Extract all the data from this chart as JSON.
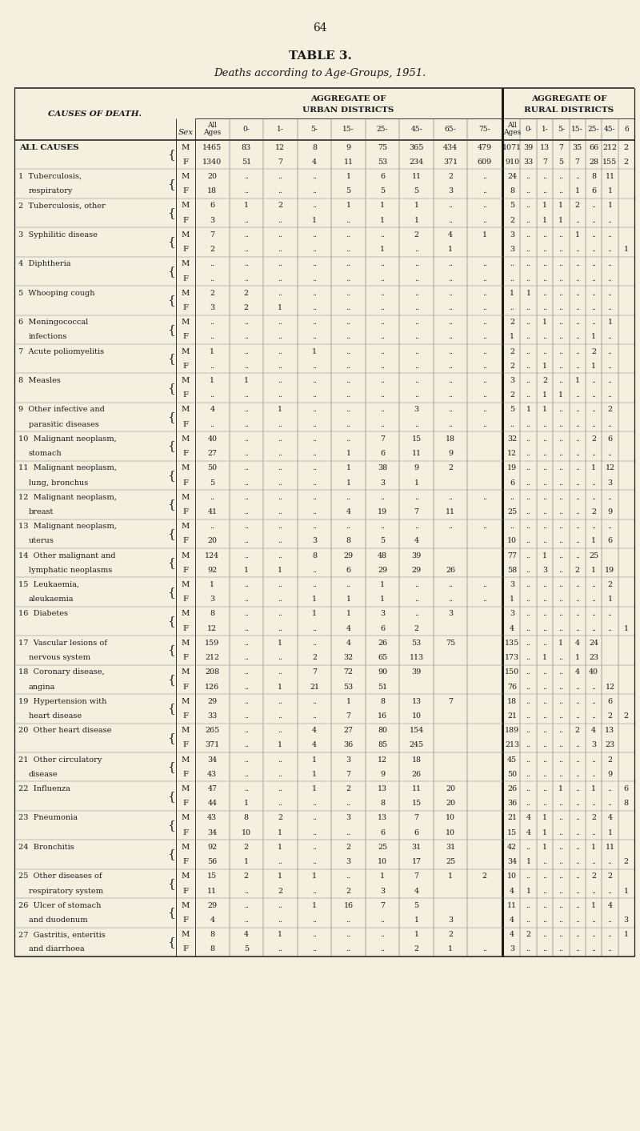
{
  "page_number": "64",
  "title": "TABLE 3.",
  "subtitle": "Deaths according to Age-Groups, 1951.",
  "bg_color": "#f5efe0",
  "rows": [
    {
      "cause": "ALL CAUSES",
      "num": "",
      "sex": "M",
      "u": [
        "1465",
        "83",
        "12",
        "8",
        "9",
        "75",
        "365",
        "434",
        "479"
      ],
      "r": [
        "1071",
        "39",
        "13",
        "7",
        "35",
        "66",
        "212",
        "2"
      ]
    },
    {
      "cause": "",
      "num": "",
      "sex": "F",
      "u": [
        "1340",
        "51",
        "7",
        "4",
        "11",
        "53",
        "234",
        "371",
        "609"
      ],
      "r": [
        "910",
        "33",
        "7",
        "5",
        "7",
        "28",
        "155",
        "2"
      ]
    },
    {
      "cause": "Tuberculosis,",
      "num": "1",
      "sex": "M",
      "u": [
        "20",
        "..",
        "..",
        "..",
        "1",
        "6",
        "11",
        "2",
        ".."
      ],
      "r": [
        "24",
        "..",
        "..",
        "..",
        "..",
        "8",
        "11",
        ""
      ]
    },
    {
      "cause": "respiratory",
      "num": "",
      "sex": "F",
      "u": [
        "18",
        "..",
        "..",
        "..",
        "5",
        "5",
        "5",
        "3",
        ".."
      ],
      "r": [
        "8",
        "..",
        "..",
        "..",
        "1",
        "6",
        "1",
        ""
      ]
    },
    {
      "cause": "Tuberculosis, other",
      "num": "2",
      "sex": "M",
      "u": [
        "6",
        "1",
        "2",
        "..",
        "1",
        "1",
        "1",
        "..",
        ".."
      ],
      "r": [
        "5",
        "..",
        "1",
        "1",
        "2",
        "..",
        "1",
        ""
      ]
    },
    {
      "cause": "",
      "num": "",
      "sex": "F",
      "u": [
        "3",
        "..",
        "..",
        "1",
        "..",
        "1",
        "1",
        "..",
        ".."
      ],
      "r": [
        "2",
        "..",
        "1",
        "1",
        "..",
        "..",
        "..",
        ""
      ]
    },
    {
      "cause": "Syphilitic disease",
      "num": "3",
      "sex": "M",
      "u": [
        "7",
        "..",
        "..",
        "..",
        "..",
        "..",
        "2",
        "4",
        "1"
      ],
      "r": [
        "3",
        "..",
        "..",
        "..",
        "1",
        "..",
        "..",
        ""
      ]
    },
    {
      "cause": "",
      "num": "",
      "sex": "F",
      "u": [
        "2",
        "..",
        "..",
        "..",
        "..",
        "1",
        "..",
        "1",
        ""
      ],
      "r": [
        "3",
        "..",
        "..",
        "..",
        "..",
        "..",
        "..",
        "1"
      ]
    },
    {
      "cause": "Diphtheria",
      "num": "4",
      "sex": "M",
      "u": [
        "..",
        "..",
        "..",
        "..",
        "..",
        "..",
        "..",
        "..",
        ".."
      ],
      "r": [
        "..",
        "..",
        "..",
        "..",
        "..",
        "..",
        "..",
        ""
      ]
    },
    {
      "cause": "",
      "num": "",
      "sex": "F",
      "u": [
        "..",
        "..",
        "..",
        "..",
        "..",
        "..",
        "..",
        "..",
        ".."
      ],
      "r": [
        "..",
        "..",
        "..",
        "..",
        "..",
        "..",
        "..",
        ""
      ]
    },
    {
      "cause": "Whooping cough",
      "num": "5",
      "sex": "M",
      "u": [
        "2",
        "2",
        "..",
        "..",
        "..",
        "..",
        "..",
        "..",
        ".."
      ],
      "r": [
        "1",
        "1",
        "..",
        "..",
        "..",
        "..",
        "..",
        ""
      ]
    },
    {
      "cause": "",
      "num": "",
      "sex": "F",
      "u": [
        "3",
        "2",
        "1",
        "..",
        "..",
        "..",
        "..",
        "..",
        ".."
      ],
      "r": [
        "..",
        "..",
        "..",
        "..",
        "..",
        "..",
        "..",
        ""
      ]
    },
    {
      "cause": "Meningococcal",
      "num": "6",
      "sex": "M",
      "u": [
        "..",
        "..",
        "..",
        "..",
        "..",
        "..",
        "..",
        "..",
        ".."
      ],
      "r": [
        "2",
        "..",
        "1",
        "..",
        "..",
        "..",
        "1",
        ""
      ]
    },
    {
      "cause": "infections",
      "num": "",
      "sex": "F",
      "u": [
        "..",
        "..",
        "..",
        "..",
        "..",
        "..",
        "..",
        "..",
        ".."
      ],
      "r": [
        "1",
        "..",
        "..",
        "..",
        "..",
        "1",
        "..",
        ""
      ]
    },
    {
      "cause": "Acute poliomyelitis",
      "num": "7",
      "sex": "M",
      "u": [
        "1",
        "..",
        "..",
        "1",
        "..",
        "..",
        "..",
        "..",
        ".."
      ],
      "r": [
        "2",
        "..",
        "..",
        "..",
        "..",
        "2",
        "..",
        ""
      ]
    },
    {
      "cause": "",
      "num": "",
      "sex": "F",
      "u": [
        "..",
        "..",
        "..",
        "..",
        "..",
        "..",
        "..",
        "..",
        ".."
      ],
      "r": [
        "2",
        "..",
        "1",
        "..",
        "..",
        "1",
        "..",
        ""
      ]
    },
    {
      "cause": "Measles",
      "num": "8",
      "sex": "M",
      "u": [
        "1",
        "1",
        "..",
        "..",
        "..",
        "..",
        "..",
        "..",
        ".."
      ],
      "r": [
        "3",
        "..",
        "2",
        "..",
        "1",
        "..",
        "..",
        ""
      ]
    },
    {
      "cause": "",
      "num": "",
      "sex": "F",
      "u": [
        "..",
        "..",
        "..",
        "..",
        "..",
        "..",
        "..",
        "..",
        ".."
      ],
      "r": [
        "2",
        "..",
        "1",
        "1",
        "..",
        "..",
        "..",
        ""
      ]
    },
    {
      "cause": "Other infective and",
      "num": "9",
      "sex": "M",
      "u": [
        "4",
        "..",
        "1",
        "..",
        "..",
        "..",
        "3",
        "..",
        ".."
      ],
      "r": [
        "5",
        "1",
        "1",
        "..",
        "..",
        "..",
        "2",
        ""
      ]
    },
    {
      "cause": "parasitic diseases",
      "num": "",
      "sex": "F",
      "u": [
        "..",
        "..",
        "..",
        "..",
        "..",
        "..",
        "..",
        "..",
        ".."
      ],
      "r": [
        "..",
        "..",
        "..",
        "..",
        "..",
        "..",
        "..",
        ""
      ]
    },
    {
      "cause": "Malignant neoplasm,",
      "num": "10",
      "sex": "M",
      "u": [
        "40",
        "..",
        "..",
        "..",
        "..",
        "7",
        "15",
        "18",
        ""
      ],
      "r": [
        "32",
        "..",
        "..",
        "..",
        "..",
        "2",
        "6",
        ""
      ]
    },
    {
      "cause": "stomach",
      "num": "",
      "sex": "F",
      "u": [
        "27",
        "..",
        "..",
        "..",
        "1",
        "6",
        "11",
        "9",
        ""
      ],
      "r": [
        "12",
        "..",
        "..",
        "..",
        "..",
        "..",
        "..",
        ""
      ]
    },
    {
      "cause": "Malignant neoplasm,",
      "num": "11",
      "sex": "M",
      "u": [
        "50",
        "..",
        "..",
        "..",
        "1",
        "38",
        "9",
        "2",
        ""
      ],
      "r": [
        "19",
        "..",
        "..",
        "..",
        "..",
        "1",
        "12",
        ""
      ]
    },
    {
      "cause": "lung, bronchus",
      "num": "",
      "sex": "F",
      "u": [
        "5",
        "..",
        "..",
        "..",
        "1",
        "3",
        "1",
        "",
        ""
      ],
      "r": [
        "6",
        "..",
        "..",
        "..",
        "..",
        "..",
        "3",
        ""
      ]
    },
    {
      "cause": "Malignant neoplasm,",
      "num": "12",
      "sex": "M",
      "u": [
        "..",
        "..",
        "..",
        "..",
        "..",
        "..",
        "..",
        "..",
        ".."
      ],
      "r": [
        "..",
        "..",
        "..",
        "..",
        "..",
        "..",
        "..",
        ""
      ]
    },
    {
      "cause": "breast",
      "num": "",
      "sex": "F",
      "u": [
        "41",
        "..",
        "..",
        "..",
        "4",
        "19",
        "7",
        "11",
        ""
      ],
      "r": [
        "25",
        "..",
        "..",
        "..",
        "..",
        "2",
        "9",
        ""
      ]
    },
    {
      "cause": "Malignant neoplasm,",
      "num": "13",
      "sex": "M",
      "u": [
        "..",
        "..",
        "..",
        "..",
        "..",
        "..",
        "..",
        "..",
        ".."
      ],
      "r": [
        "..",
        "..",
        "..",
        "..",
        "..",
        "..",
        "..",
        ""
      ]
    },
    {
      "cause": "uterus",
      "num": "",
      "sex": "F",
      "u": [
        "20",
        "..",
        "..",
        "3",
        "8",
        "5",
        "4",
        "",
        ""
      ],
      "r": [
        "10",
        "..",
        "..",
        "..",
        "..",
        "1",
        "6",
        ""
      ]
    },
    {
      "cause": "Other malignant and",
      "num": "14",
      "sex": "M",
      "u": [
        "124",
        "..",
        "..",
        "8",
        "29",
        "48",
        "39",
        "",
        ""
      ],
      "r": [
        "77",
        "..",
        "1",
        "..",
        "..",
        "25",
        "",
        ""
      ]
    },
    {
      "cause": "lymphatic neoplasms",
      "num": "",
      "sex": "F",
      "u": [
        "92",
        "1",
        "1",
        "..",
        "6",
        "29",
        "29",
        "26",
        ""
      ],
      "r": [
        "58",
        "..",
        "3",
        "..",
        "2",
        "1",
        "19",
        ""
      ]
    },
    {
      "cause": "Leukaemia,",
      "num": "15",
      "sex": "M",
      "u": [
        "1",
        "..",
        "..",
        "..",
        "..",
        "1",
        "..",
        "..",
        ".."
      ],
      "r": [
        "3",
        "..",
        "..",
        "..",
        "..",
        "..",
        "2",
        ""
      ]
    },
    {
      "cause": "aleukaemia",
      "num": "",
      "sex": "F",
      "u": [
        "3",
        "..",
        "..",
        "1",
        "1",
        "1",
        "..",
        "..",
        ".."
      ],
      "r": [
        "1",
        "..",
        "..",
        "..",
        "..",
        "..",
        "1",
        ""
      ]
    },
    {
      "cause": "Diabetes",
      "num": "16",
      "sex": "M",
      "u": [
        "8",
        "..",
        "..",
        "1",
        "1",
        "3",
        "..",
        "3",
        ""
      ],
      "r": [
        "3",
        "..",
        "..",
        "..",
        "..",
        "..",
        "..",
        ""
      ]
    },
    {
      "cause": "",
      "num": "",
      "sex": "F",
      "u": [
        "12",
        "..",
        "..",
        "..",
        "4",
        "6",
        "2",
        "",
        ""
      ],
      "r": [
        "4",
        "..",
        "..",
        "..",
        "..",
        "..",
        "..",
        "1"
      ]
    },
    {
      "cause": "Vascular lesions of",
      "num": "17",
      "sex": "M",
      "u": [
        "159",
        "..",
        "1",
        "..",
        "4",
        "26",
        "53",
        "75",
        ""
      ],
      "r": [
        "135",
        "..",
        "..",
        "1",
        "4",
        "24",
        "",
        ""
      ]
    },
    {
      "cause": "nervous system",
      "num": "",
      "sex": "F",
      "u": [
        "212",
        "..",
        "..",
        "2",
        "32",
        "65",
        "113",
        "",
        ""
      ],
      "r": [
        "173",
        "..",
        "1",
        "..",
        "1",
        "23",
        "",
        ""
      ]
    },
    {
      "cause": "Coronary disease,",
      "num": "18",
      "sex": "M",
      "u": [
        "208",
        "..",
        "..",
        "7",
        "72",
        "90",
        "39",
        "",
        ""
      ],
      "r": [
        "150",
        "..",
        "..",
        "..",
        "4",
        "40",
        "",
        ""
      ]
    },
    {
      "cause": "angina",
      "num": "",
      "sex": "F",
      "u": [
        "126",
        "..",
        "1",
        "21",
        "53",
        "51",
        "",
        "",
        ""
      ],
      "r": [
        "76",
        "..",
        "..",
        "..",
        "..",
        "..",
        "12",
        ""
      ]
    },
    {
      "cause": "Hypertension with",
      "num": "19",
      "sex": "M",
      "u": [
        "29",
        "..",
        "..",
        "..",
        "1",
        "8",
        "13",
        "7",
        ""
      ],
      "r": [
        "18",
        "..",
        "..",
        "..",
        "..",
        "..",
        "6",
        ""
      ]
    },
    {
      "cause": "heart disease",
      "num": "",
      "sex": "F",
      "u": [
        "33",
        "..",
        "..",
        "..",
        "7",
        "16",
        "10",
        "",
        ""
      ],
      "r": [
        "21",
        "..",
        "..",
        "..",
        "..",
        "..",
        "2",
        "2"
      ]
    },
    {
      "cause": "Other heart disease",
      "num": "20",
      "sex": "M",
      "u": [
        "265",
        "..",
        "..",
        "4",
        "27",
        "80",
        "154",
        "",
        ""
      ],
      "r": [
        "189",
        "..",
        "..",
        "..",
        "2",
        "4",
        "13",
        ""
      ]
    },
    {
      "cause": "",
      "num": "",
      "sex": "F",
      "u": [
        "371",
        "..",
        "1",
        "4",
        "36",
        "85",
        "245",
        "",
        ""
      ],
      "r": [
        "213",
        "..",
        "..",
        "..",
        "..",
        "3",
        "23",
        ""
      ]
    },
    {
      "cause": "Other circulatory",
      "num": "21",
      "sex": "M",
      "u": [
        "34",
        "..",
        "..",
        "1",
        "3",
        "12",
        "18",
        "",
        ""
      ],
      "r": [
        "45",
        "..",
        "..",
        "..",
        "..",
        "..",
        "2",
        ""
      ]
    },
    {
      "cause": "disease",
      "num": "",
      "sex": "F",
      "u": [
        "43",
        "..",
        "..",
        "1",
        "7",
        "9",
        "26",
        "",
        ""
      ],
      "r": [
        "50",
        "..",
        "..",
        "..",
        "..",
        "..",
        "9",
        ""
      ]
    },
    {
      "cause": "Influenza",
      "num": "22",
      "sex": "M",
      "u": [
        "47",
        "..",
        "..",
        "1",
        "2",
        "13",
        "11",
        "20",
        ""
      ],
      "r": [
        "26",
        "..",
        "..",
        "1",
        "..",
        "1",
        "..",
        "6"
      ]
    },
    {
      "cause": "",
      "num": "",
      "sex": "F",
      "u": [
        "44",
        "1",
        "..",
        "..",
        "..",
        "8",
        "15",
        "20",
        ""
      ],
      "r": [
        "36",
        "..",
        "..",
        "..",
        "..",
        "..",
        "..",
        "8"
      ]
    },
    {
      "cause": "Pneumonia",
      "num": "23",
      "sex": "M",
      "u": [
        "43",
        "8",
        "2",
        "..",
        "3",
        "13",
        "7",
        "10",
        ""
      ],
      "r": [
        "21",
        "4",
        "1",
        "..",
        "..",
        "2",
        "4",
        ""
      ]
    },
    {
      "cause": "",
      "num": "",
      "sex": "F",
      "u": [
        "34",
        "10",
        "1",
        "..",
        "..",
        "6",
        "6",
        "10",
        ""
      ],
      "r": [
        "15",
        "4",
        "1",
        "..",
        "..",
        "..",
        "1",
        ""
      ]
    },
    {
      "cause": "Bronchitis",
      "num": "24",
      "sex": "M",
      "u": [
        "92",
        "2",
        "1",
        "..",
        "2",
        "25",
        "31",
        "31",
        ""
      ],
      "r": [
        "42",
        "..",
        "1",
        "..",
        "..",
        "1",
        "11",
        ""
      ]
    },
    {
      "cause": "",
      "num": "",
      "sex": "F",
      "u": [
        "56",
        "1",
        "..",
        "..",
        "3",
        "10",
        "17",
        "25",
        ""
      ],
      "r": [
        "34",
        "1",
        "..",
        "..",
        "..",
        "..",
        "..",
        "2"
      ]
    },
    {
      "cause": "Other diseases of",
      "num": "25",
      "sex": "M",
      "u": [
        "15",
        "2",
        "1",
        "1",
        "..",
        "1",
        "7",
        "1",
        "2"
      ],
      "r": [
        "10",
        "..",
        "..",
        "..",
        "..",
        "2",
        "2",
        ""
      ]
    },
    {
      "cause": "respiratory system",
      "num": "",
      "sex": "F",
      "u": [
        "11",
        "..",
        "2",
        "..",
        "2",
        "3",
        "4",
        "",
        ""
      ],
      "r": [
        "4",
        "1",
        "..",
        "..",
        "..",
        "..",
        "..",
        "1"
      ]
    },
    {
      "cause": "Ulcer of stomach",
      "num": "26",
      "sex": "M",
      "u": [
        "29",
        "..",
        "..",
        "1",
        "16",
        "7",
        "5",
        "",
        ""
      ],
      "r": [
        "11",
        "..",
        "..",
        "..",
        "..",
        "1",
        "4",
        ""
      ]
    },
    {
      "cause": "and duodenum",
      "num": "",
      "sex": "F",
      "u": [
        "4",
        "..",
        "..",
        "..",
        "..",
        "..",
        "1",
        "3",
        ""
      ],
      "r": [
        "4",
        "..",
        "..",
        "..",
        "..",
        "..",
        "..",
        "3"
      ]
    },
    {
      "cause": "Gastritis, enteritis",
      "num": "27",
      "sex": "M",
      "u": [
        "8",
        "4",
        "1",
        "..",
        "..",
        "..",
        "1",
        "2",
        ""
      ],
      "r": [
        "4",
        "2",
        "..",
        "..",
        "..",
        "..",
        "..",
        "1"
      ]
    },
    {
      "cause": "and diarrhoea",
      "num": "",
      "sex": "F",
      "u": [
        "8",
        "5",
        "..",
        "..",
        "..",
        "..",
        "2",
        "1",
        ".."
      ],
      "r": [
        "3",
        "..",
        "..",
        "..",
        "..",
        "..",
        "..",
        ""
      ]
    }
  ]
}
